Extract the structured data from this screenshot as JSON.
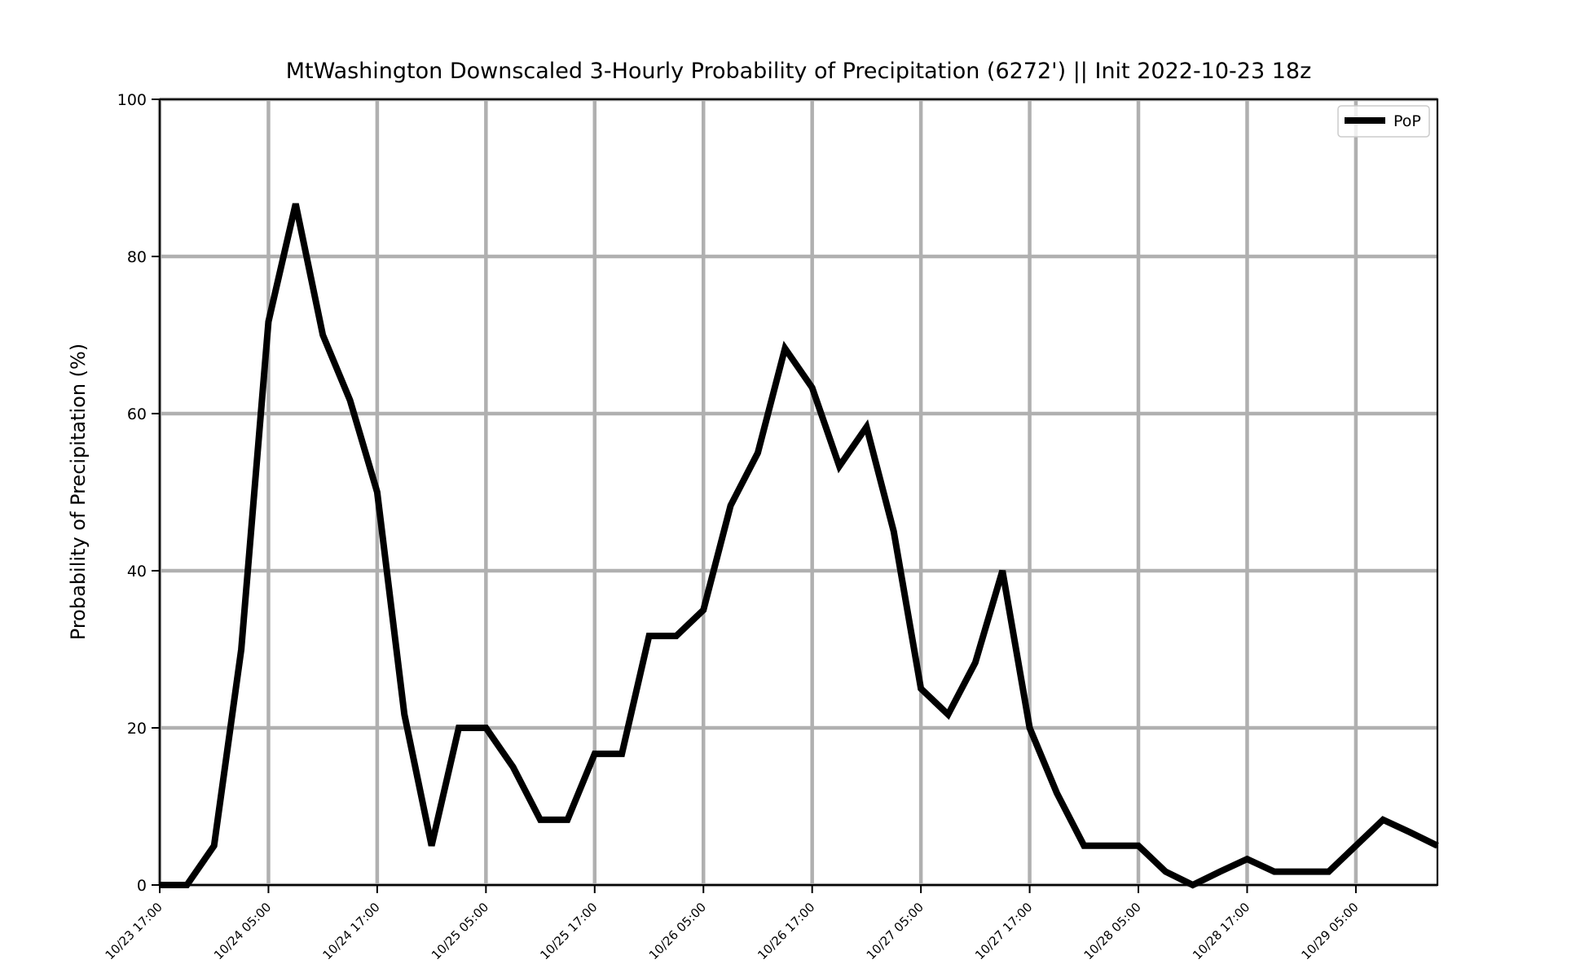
{
  "chart_data": {
    "type": "line",
    "title": "MtWashington Downscaled 3-Hourly Probability of Precipitation (6272') || Init 2022-10-23 18z",
    "xlabel": "",
    "ylabel": "Probability of Precipitation (%)",
    "ylim": [
      0,
      100
    ],
    "yticks": [
      "0",
      "20",
      "40",
      "60",
      "80",
      "100"
    ],
    "x_start": "10/23 17:00",
    "x_step_hours": 3,
    "xticks": [
      "10/23 17:00",
      "10/24 05:00",
      "10/24 17:00",
      "10/25 05:00",
      "10/25 17:00",
      "10/26 05:00",
      "10/26 17:00",
      "10/27 05:00",
      "10/27 17:00",
      "10/28 05:00",
      "10/28 17:00",
      "10/29 05:00"
    ],
    "grid": true,
    "legend": "top-right",
    "colors": {
      "line": "#000000",
      "grid": "#b0b0b0"
    },
    "series": [
      {
        "name": "PoP",
        "values": [
          0,
          0,
          5,
          30,
          71.7,
          86.7,
          70,
          61.7,
          50,
          21.7,
          5,
          20,
          20,
          15,
          8.3,
          8.3,
          16.7,
          16.7,
          31.7,
          31.7,
          35,
          48.3,
          55,
          68.3,
          63.3,
          53.3,
          58.3,
          45,
          25,
          21.7,
          28.3,
          40,
          20,
          11.7,
          5,
          5,
          5,
          1.7,
          0,
          1.7,
          3.3,
          1.7,
          1.7,
          1.7,
          5,
          8.3,
          6.7,
          5
        ]
      }
    ]
  }
}
